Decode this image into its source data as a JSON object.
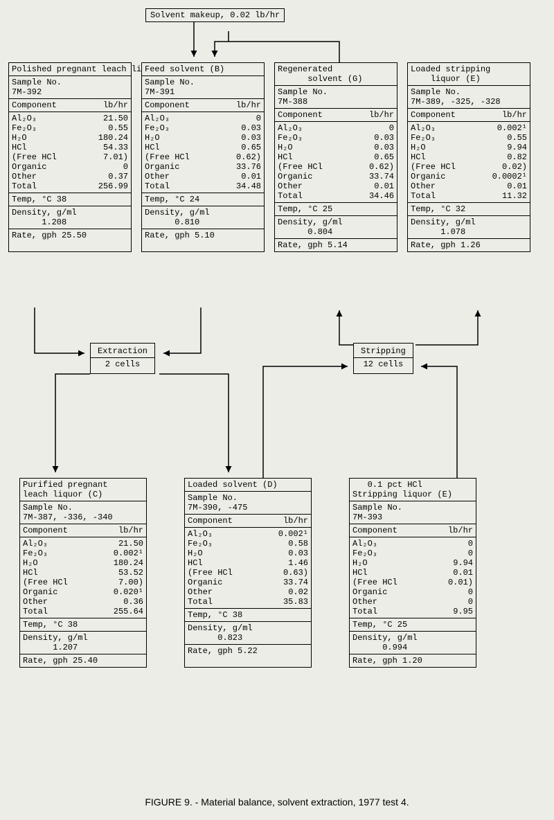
{
  "makeup": "Solvent makeup, 0.02 lb/hr",
  "caption": "FIGURE 9. - Material balance, solvent extraction, 1977 test 4.",
  "proc1": {
    "title": "Extraction",
    "cells": "2 cells"
  },
  "proc2": {
    "title": "Stripping",
    "cells": "12 cells"
  },
  "hdr1": "Component",
  "hdr2": "lb/hr",
  "A": {
    "title": "Polished pregnant leach liquor (A)",
    "sample": "Sample No.\n7M-392",
    "rows": [
      [
        "Al₂O₃",
        "21.50"
      ],
      [
        "Fe₂O₃",
        "0.55"
      ],
      [
        "H₂O",
        "180.24"
      ],
      [
        "HCl",
        "54.33"
      ],
      [
        "(Free HCl",
        "7.01)"
      ],
      [
        "Organic",
        "0"
      ],
      [
        "Other",
        "0.37"
      ],
      [
        "  Total",
        "256.99"
      ]
    ],
    "temp": "Temp, °C  38",
    "dens": "Density, g/ml\n      1.208",
    "rate": "Rate, gph 25.50"
  },
  "B": {
    "title": "Feed solvent (B)",
    "sample": "Sample No.\n7M-391",
    "rows": [
      [
        "Al₂O₃",
        "0"
      ],
      [
        "Fe₂O₃",
        "0.03"
      ],
      [
        "H₂O",
        "0.03"
      ],
      [
        "HCl",
        "0.65"
      ],
      [
        "(Free HCl",
        "0.62)"
      ],
      [
        "Organic",
        "33.76"
      ],
      [
        "Other",
        "0.01"
      ],
      [
        "  Total",
        "34.48"
      ]
    ],
    "temp": "Temp, °C  24",
    "dens": "Density, g/ml\n      0.810",
    "rate": "Rate, gph 5.10"
  },
  "G": {
    "title": "Regenerated\n      solvent (G)",
    "sample": "Sample No.\n7M-388",
    "rows": [
      [
        "Al₂O₃",
        "0"
      ],
      [
        "Fe₂O₃",
        "0.03"
      ],
      [
        "H₂O",
        "0.03"
      ],
      [
        "HCl",
        "0.65"
      ],
      [
        "(Free HCl",
        "0.62)"
      ],
      [
        "Organic",
        "33.74"
      ],
      [
        "Other",
        "0.01"
      ],
      [
        "  Total",
        "34.46"
      ]
    ],
    "temp": "Temp, °C  25",
    "dens": "Density, g/ml\n      0.804",
    "rate": "Rate, gph 5.14"
  },
  "E1": {
    "title": "Loaded stripping\n    liquor (E)",
    "sample": "Sample No.\n7M-389, -325, -328",
    "rows": [
      [
        "Al₂O₃",
        "0.002¹"
      ],
      [
        "Fe₂O₃",
        "0.55"
      ],
      [
        "H₂O",
        "9.94"
      ],
      [
        "HCl",
        "0.82"
      ],
      [
        "(Free HCl",
        "0.02)"
      ],
      [
        "Organic",
        "0.0002¹"
      ],
      [
        "Other",
        "0.01"
      ],
      [
        "  Total",
        "11.32"
      ]
    ],
    "temp": "Temp, °C  32",
    "dens": "Density, g/ml\n      1.078",
    "rate": "Rate, gph 1.26"
  },
  "C": {
    "title": "Purified pregnant\nleach liquor (C)",
    "sample": "Sample No.\n7M-387, -336, -340",
    "rows": [
      [
        "Al₂O₃",
        "21.50"
      ],
      [
        "Fe₂O₃",
        "0.002¹"
      ],
      [
        "H₂O",
        "180.24"
      ],
      [
        "HCl",
        "53.52"
      ],
      [
        "(Free HCl",
        "7.00)"
      ],
      [
        "Organic",
        "0.020¹"
      ],
      [
        "Other",
        "0.36"
      ],
      [
        "  Total",
        "255.64"
      ]
    ],
    "temp": "Temp, °C  38",
    "dens": "Density, g/ml\n      1.207",
    "rate": "Rate, gph 25.40"
  },
  "D": {
    "title": "Loaded solvent (D)",
    "sample": "Sample No.\n7M-390, -475",
    "rows": [
      [
        "Al₂O₃",
        "0.002¹"
      ],
      [
        "Fe₂O₃",
        "0.58"
      ],
      [
        "H₂O",
        "0.03"
      ],
      [
        "HCl",
        "1.46"
      ],
      [
        "(Free HCl",
        "0.63)"
      ],
      [
        "Organic",
        "33.74"
      ],
      [
        "Other",
        "0.02"
      ],
      [
        "  Total",
        "35.83"
      ]
    ],
    "temp": "Temp, °C  38",
    "dens": "Density, g/ml\n      0.823",
    "rate": "Rate, gph 5.22"
  },
  "E2": {
    "title": "   0.1 pct HCl\nStripping liquor (E)",
    "sample": "Sample No.\n7M-393",
    "rows": [
      [
        "Al₂O₃",
        "0"
      ],
      [
        "Fe₂O₃",
        "0"
      ],
      [
        "H₂O",
        "9.94"
      ],
      [
        "HCl",
        "0.01"
      ],
      [
        "(Free HCl",
        "0.01)"
      ],
      [
        "Organic",
        "0"
      ],
      [
        "Other",
        "0"
      ],
      [
        "  Total",
        "9.95"
      ]
    ],
    "temp": "Temp, °C  25",
    "dens": "Density, g/ml\n      0.994",
    "rate": "Rate, gph 1.20"
  }
}
